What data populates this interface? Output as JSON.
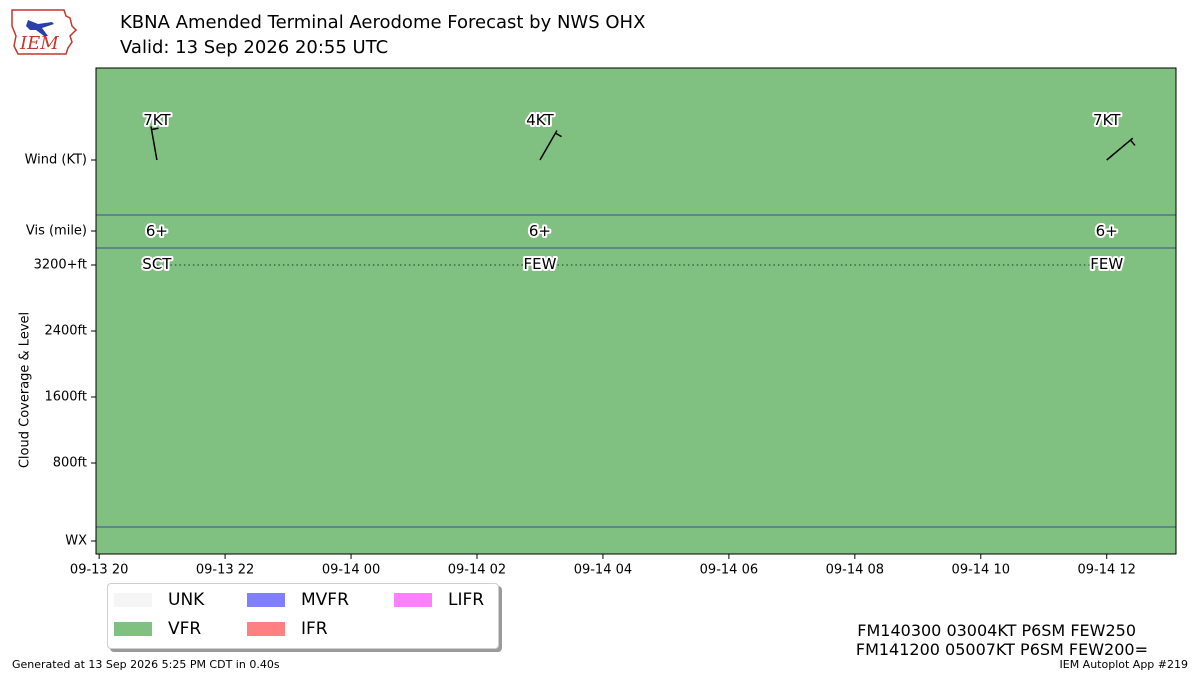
{
  "logo": {
    "text": "IEM"
  },
  "header": {
    "title": "KBNA Amended Terminal Aerodome Forecast by NWS OHX",
    "subtitle": "Valid: 13 Sep 2026 20:55 UTC"
  },
  "chart_data": {
    "type": "timeline",
    "title": "KBNA Amended Terminal Aerodome Forecast by NWS OHX",
    "subtitle": "Valid: 13 Sep 2026 20:55 UTC",
    "xlabel": "",
    "ylabel": "Cloud Coverage & Level",
    "x_ticks": [
      "09-13 20",
      "09-13 22",
      "09-14 00",
      "09-14 02",
      "09-14 04",
      "09-14 06",
      "09-14 08",
      "09-14 10",
      "09-14 12"
    ],
    "x_tick_hours": [
      0,
      2,
      4,
      6,
      8,
      10,
      12,
      14,
      16
    ],
    "x_range_hours": [
      -0.05,
      17.1
    ],
    "row_labels": {
      "wind": "Wind (KT)",
      "vis": "Vis (mile)",
      "wx": "WX"
    },
    "cloud_ticks": [
      {
        "label": "3200+ft",
        "value": 3200
      },
      {
        "label": "2400ft",
        "value": 2400
      },
      {
        "label": "1600ft",
        "value": 1600
      },
      {
        "label": "800ft",
        "value": 800
      }
    ],
    "category_fill": "VFR",
    "forecasts": [
      {
        "hour": 0.917,
        "wind_label": "7KT",
        "wind_dir": 350,
        "wind_kt": 7,
        "vis": "6+",
        "sky": "SCT",
        "level": 3200
      },
      {
        "hour": 7.0,
        "wind_label": "4KT",
        "wind_dir": 30,
        "wind_kt": 4,
        "vis": "6+",
        "sky": "FEW",
        "level": 3200
      },
      {
        "hour": 16.0,
        "wind_label": "7KT",
        "wind_dir": 50,
        "wind_kt": 7,
        "vis": "6+",
        "sky": "FEW",
        "level": 3200
      }
    ],
    "legend": [
      {
        "label": "UNK",
        "color": "#f5f5f5"
      },
      {
        "label": "MVFR",
        "color": "#8080ff"
      },
      {
        "label": "LIFR",
        "color": "#ff80ff"
      },
      {
        "label": "VFR",
        "color": "#80c080"
      },
      {
        "label": "IFR",
        "color": "#ff8080"
      }
    ],
    "colors": {
      "vfr": "#80c080",
      "divider": "#3a4f8c",
      "dotted": "#2e6e3e"
    }
  },
  "taf": {
    "line1": "FM140300 03004KT P6SM FEW250",
    "line2": "FM141200 05007KT P6SM FEW200="
  },
  "footer": {
    "generated": "Generated at 13 Sep 2026 5:25 PM CDT in 0.40s",
    "app": "IEM Autoplot App #219"
  }
}
